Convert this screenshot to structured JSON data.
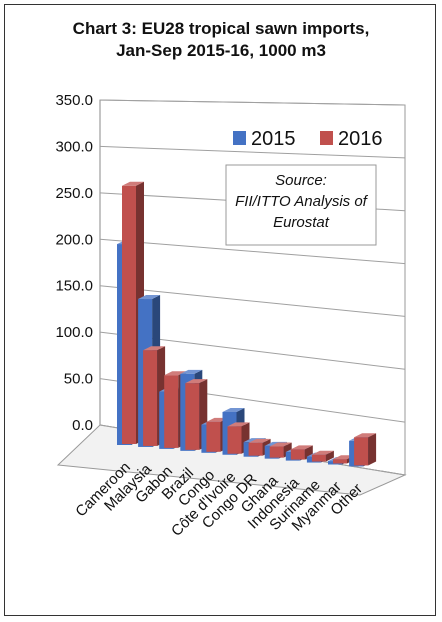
{
  "chart_data": {
    "type": "bar",
    "title_lines": [
      "Chart 3: EU28 tropical sawn imports,",
      "Jan-Sep 2015-16, 1000 m3"
    ],
    "categories": [
      "Cameroon",
      "Malaysia",
      "Gabon",
      "Brazil",
      "Congo",
      "Côte d'Ivoire",
      "Congo DR",
      "Ghana",
      "Indonesia",
      "Suriname",
      "Myanmar",
      "Other"
    ],
    "series": [
      {
        "name": "2015",
        "color": "#4472C4",
        "values": [
          235,
          173,
          67,
          90,
          33,
          50,
          17,
          15,
          10,
          7,
          4,
          30
        ]
      },
      {
        "name": "2016",
        "color": "#C0504D",
        "values": [
          302,
          112,
          85,
          78,
          35,
          32,
          15,
          13,
          12,
          8,
          5,
          33
        ]
      }
    ],
    "yticks": [
      "0.0",
      "50.0",
      "100.0",
      "150.0",
      "200.0",
      "250.0",
      "300.0",
      "350.0"
    ],
    "ylim": [
      0,
      350
    ],
    "grid": true,
    "legend_position": "top-right",
    "annotation_lines": [
      "Source:",
      "FII/ITTO Analysis of",
      "Eurostat"
    ]
  }
}
